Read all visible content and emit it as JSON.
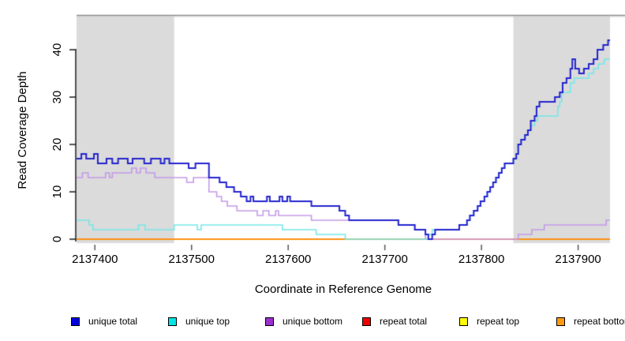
{
  "chart_data": {
    "type": "line",
    "variant": "step-after",
    "title": "",
    "xlabel": "Coordinate in Reference Genome",
    "ylabel": "Read Coverage Depth",
    "xlim": [
      2137381,
      2137933
    ],
    "ylim": [
      0,
      47
    ],
    "x_ticks": [
      2137400,
      2137500,
      2137600,
      2137700,
      2137800,
      2137900
    ],
    "y_ticks": [
      0,
      10,
      20,
      30,
      40
    ],
    "grid": false,
    "legend_position": "bottom",
    "shade_color": "#DBDBDB",
    "shaded_x_regions": [
      [
        2137381,
        2137482
      ],
      [
        2137833,
        2137933
      ]
    ],
    "draw_order": [
      3,
      4,
      5,
      2,
      1,
      0
    ],
    "series": [
      {
        "name": "unique total",
        "color": "#0000DD",
        "line_color": "#2323CE",
        "line_width": 2,
        "points": [
          [
            2137381,
            17
          ],
          [
            2137386,
            18
          ],
          [
            2137391,
            17
          ],
          [
            2137399,
            18
          ],
          [
            2137403,
            16
          ],
          [
            2137412,
            17
          ],
          [
            2137418,
            16
          ],
          [
            2137424,
            17
          ],
          [
            2137434,
            16
          ],
          [
            2137439,
            17
          ],
          [
            2137451,
            16
          ],
          [
            2137458,
            17
          ],
          [
            2137468,
            16
          ],
          [
            2137472,
            17
          ],
          [
            2137477,
            16
          ],
          [
            2137497,
            15
          ],
          [
            2137504,
            16
          ],
          [
            2137518,
            13
          ],
          [
            2137529,
            12
          ],
          [
            2137536,
            11
          ],
          [
            2137544,
            10
          ],
          [
            2137551,
            9
          ],
          [
            2137557,
            8
          ],
          [
            2137561,
            9
          ],
          [
            2137564,
            8
          ],
          [
            2137578,
            9
          ],
          [
            2137581,
            8
          ],
          [
            2137591,
            9
          ],
          [
            2137594,
            8
          ],
          [
            2137599,
            9
          ],
          [
            2137602,
            8
          ],
          [
            2137624,
            7
          ],
          [
            2137653,
            6
          ],
          [
            2137659,
            5
          ],
          [
            2137663,
            4
          ],
          [
            2137714,
            3
          ],
          [
            2137731,
            2
          ],
          [
            2137742,
            1
          ],
          [
            2137745,
            0
          ],
          [
            2137749,
            1
          ],
          [
            2137752,
            2
          ],
          [
            2137777,
            3
          ],
          [
            2137785,
            4
          ],
          [
            2137788,
            5
          ],
          [
            2137792,
            6
          ],
          [
            2137796,
            7
          ],
          [
            2137799,
            8
          ],
          [
            2137803,
            9
          ],
          [
            2137806,
            10
          ],
          [
            2137809,
            11
          ],
          [
            2137812,
            12
          ],
          [
            2137815,
            13
          ],
          [
            2137818,
            14
          ],
          [
            2137821,
            15
          ],
          [
            2137824,
            16
          ],
          [
            2137833,
            17
          ],
          [
            2137836,
            18
          ],
          [
            2137838,
            20
          ],
          [
            2137841,
            21
          ],
          [
            2137845,
            22
          ],
          [
            2137848,
            23
          ],
          [
            2137851,
            25
          ],
          [
            2137855,
            26
          ],
          [
            2137857,
            28
          ],
          [
            2137860,
            29
          ],
          [
            2137876,
            30
          ],
          [
            2137881,
            31
          ],
          [
            2137884,
            33
          ],
          [
            2137888,
            34
          ],
          [
            2137892,
            36
          ],
          [
            2137894,
            38
          ],
          [
            2137897,
            36
          ],
          [
            2137901,
            35
          ],
          [
            2137906,
            36
          ],
          [
            2137911,
            37
          ],
          [
            2137916,
            38
          ],
          [
            2137920,
            40
          ],
          [
            2137926,
            41
          ],
          [
            2137931,
            42
          ]
        ]
      },
      {
        "name": "unique top",
        "color": "#00E5E5",
        "line_color": "#76E7E7",
        "line_width": 1.6,
        "points": [
          [
            2137381,
            4
          ],
          [
            2137394,
            3
          ],
          [
            2137398,
            2
          ],
          [
            2137445,
            3
          ],
          [
            2137452,
            2
          ],
          [
            2137482,
            3
          ],
          [
            2137506,
            2
          ],
          [
            2137510,
            3
          ],
          [
            2137594,
            2
          ],
          [
            2137629,
            1
          ],
          [
            2137659,
            0
          ],
          [
            2137745,
            1
          ],
          [
            2137749,
            2
          ],
          [
            2137777,
            3
          ],
          [
            2137785,
            4
          ],
          [
            2137788,
            5
          ],
          [
            2137792,
            6
          ],
          [
            2137796,
            7
          ],
          [
            2137799,
            8
          ],
          [
            2137803,
            9
          ],
          [
            2137806,
            10
          ],
          [
            2137809,
            11
          ],
          [
            2137812,
            12
          ],
          [
            2137815,
            13
          ],
          [
            2137818,
            14
          ],
          [
            2137821,
            15
          ],
          [
            2137824,
            16
          ],
          [
            2137833,
            17
          ],
          [
            2137836,
            18
          ],
          [
            2137838,
            20
          ],
          [
            2137841,
            21
          ],
          [
            2137845,
            22
          ],
          [
            2137848,
            23
          ],
          [
            2137851,
            24
          ],
          [
            2137855,
            25
          ],
          [
            2137858,
            26
          ],
          [
            2137879,
            28
          ],
          [
            2137881,
            29
          ],
          [
            2137883,
            31
          ],
          [
            2137892,
            33
          ],
          [
            2137896,
            34
          ],
          [
            2137911,
            35
          ],
          [
            2137916,
            36
          ],
          [
            2137921,
            37
          ],
          [
            2137927,
            38
          ]
        ]
      },
      {
        "name": "unique bottom",
        "color": "#9932CC",
        "line_color": "#C49AE8",
        "line_width": 1.6,
        "points": [
          [
            2137381,
            13
          ],
          [
            2137387,
            14
          ],
          [
            2137393,
            13
          ],
          [
            2137411,
            14
          ],
          [
            2137415,
            13
          ],
          [
            2137418,
            14
          ],
          [
            2137438,
            15
          ],
          [
            2137443,
            14
          ],
          [
            2137447,
            15
          ],
          [
            2137453,
            14
          ],
          [
            2137462,
            13
          ],
          [
            2137495,
            12
          ],
          [
            2137502,
            13
          ],
          [
            2137518,
            10
          ],
          [
            2137526,
            9
          ],
          [
            2137531,
            8
          ],
          [
            2137537,
            7
          ],
          [
            2137547,
            6
          ],
          [
            2137568,
            5
          ],
          [
            2137574,
            6
          ],
          [
            2137580,
            5
          ],
          [
            2137587,
            6
          ],
          [
            2137590,
            5
          ],
          [
            2137624,
            4
          ],
          [
            2137714,
            3
          ],
          [
            2137731,
            2
          ],
          [
            2137742,
            0
          ],
          [
            2137838,
            1
          ],
          [
            2137852,
            2
          ],
          [
            2137865,
            3
          ],
          [
            2137929,
            4
          ]
        ]
      },
      {
        "name": "repeat total",
        "color": "#EE0000",
        "line_color": "#CC2244",
        "line_width": 1.6,
        "points": [
          [
            2137381,
            0
          ]
        ]
      },
      {
        "name": "repeat top",
        "color": "#FFFF00",
        "line_color": "#FFE94D",
        "line_width": 1.6,
        "points": [
          [
            2137381,
            0
          ]
        ]
      },
      {
        "name": "repeat bottom",
        "color": "#FF9912",
        "line_color": "#FF9012",
        "line_width": 2,
        "points": [
          [
            2137381,
            0
          ]
        ]
      }
    ]
  }
}
